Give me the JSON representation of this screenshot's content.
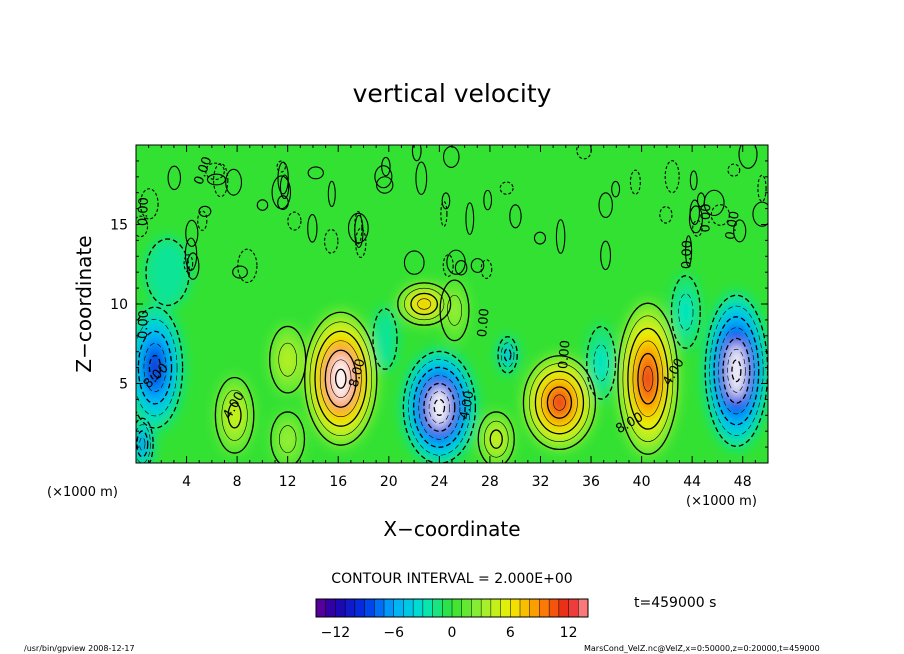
{
  "chart_data": {
    "type": "heatmap",
    "title": "vertical velocity",
    "xlabel": "X−coordinate",
    "ylabel": "Z−coordinate",
    "x_unit_left": "(×1000 m)",
    "x_unit_right": "(×1000 m)",
    "xlim": [
      0,
      50
    ],
    "ylim": [
      0,
      20
    ],
    "xticks": [
      4,
      8,
      12,
      16,
      20,
      24,
      28,
      32,
      36,
      40,
      44,
      48
    ],
    "yticks": [
      5,
      10,
      15
    ],
    "contour_interval_text": "CONTOUR INTERVAL = 2.000E+00",
    "time_text": "t=459000 s",
    "colorbar": {
      "min": -14,
      "max": 14,
      "step": 1,
      "ticks": [
        -12,
        -6,
        0,
        6,
        12
      ]
    },
    "contour_labels": [
      {
        "text": "4.00",
        "x": 8,
        "y": 3.5,
        "angle": -60
      },
      {
        "text": "8.00",
        "x": 17.8,
        "y": 5.6,
        "angle": -75
      },
      {
        "text": "4.00",
        "x": 26.5,
        "y": 3.6,
        "angle": -80
      },
      {
        "text": "0.00",
        "x": 27.8,
        "y": 8.8,
        "angle": -85
      },
      {
        "text": "0.00",
        "x": 34.2,
        "y": 6.8,
        "angle": -85
      },
      {
        "text": "8.00",
        "x": 39.2,
        "y": 2.3,
        "angle": -30
      },
      {
        "text": "4.00",
        "x": 42.8,
        "y": 5.6,
        "angle": -60
      },
      {
        "text": "8.00",
        "x": 1.8,
        "y": 5.3,
        "angle": -45
      },
      {
        "text": "0.00",
        "x": 0.9,
        "y": 8.7,
        "angle": -88
      },
      {
        "text": "0.00",
        "x": 0.9,
        "y": 15.8,
        "angle": -88
      },
      {
        "text": "0.00",
        "x": 5.6,
        "y": 18.3,
        "angle": -70
      },
      {
        "text": "0.00",
        "x": 43.9,
        "y": 13.1,
        "angle": -88
      },
      {
        "text": "0.00",
        "x": 45.4,
        "y": 15.4,
        "angle": -88
      },
      {
        "text": "0.00",
        "x": 47.5,
        "y": 14.9,
        "angle": -80
      }
    ],
    "cells": [
      {
        "x": 16.2,
        "y": 5.3,
        "rx": 3.0,
        "ry": 4.4,
        "value": 14
      },
      {
        "x": 24.0,
        "y": 3.5,
        "rx": 3.0,
        "ry": 3.7,
        "value": -14
      },
      {
        "x": 33.5,
        "y": 3.8,
        "rx": 3.0,
        "ry": 3.1,
        "value": 12
      },
      {
        "x": 40.5,
        "y": 5.3,
        "rx": 2.5,
        "ry": 5.0,
        "value": 12
      },
      {
        "x": 47.5,
        "y": 5.8,
        "rx": 2.6,
        "ry": 5.0,
        "value": -14
      },
      {
        "x": 1.5,
        "y": 6.0,
        "rx": 2.3,
        "ry": 4.0,
        "value": -10
      },
      {
        "x": 0.5,
        "y": 1.2,
        "rx": 0.9,
        "ry": 1.7,
        "value": -8
      },
      {
        "x": 7.8,
        "y": 3.0,
        "rx": 1.6,
        "ry": 2.5,
        "value": 5
      },
      {
        "x": 12.0,
        "y": 1.5,
        "rx": 1.4,
        "ry": 1.8,
        "value": 3
      },
      {
        "x": 28.5,
        "y": 1.5,
        "rx": 1.5,
        "ry": 1.8,
        "value": 5
      },
      {
        "x": 22.8,
        "y": 10.0,
        "rx": 2.2,
        "ry": 1.4,
        "value": 8
      },
      {
        "x": 29.4,
        "y": 6.8,
        "rx": 0.8,
        "ry": 1.2,
        "value": -6
      },
      {
        "x": 36.8,
        "y": 6.3,
        "rx": 1.2,
        "ry": 2.4,
        "value": -3
      },
      {
        "x": 25.2,
        "y": 9.6,
        "rx": 1.2,
        "ry": 2.0,
        "value": 3
      },
      {
        "x": 19.7,
        "y": 7.8,
        "rx": 1.0,
        "ry": 2.0,
        "value": -2
      },
      {
        "x": 43.5,
        "y": 9.5,
        "rx": 1.2,
        "ry": 2.4,
        "value": -3
      },
      {
        "x": 2.5,
        "y": 12.0,
        "rx": 1.8,
        "ry": 2.2,
        "value": -2
      },
      {
        "x": 12.0,
        "y": 6.5,
        "rx": 1.5,
        "ry": 2.2,
        "value": 4
      }
    ]
  },
  "footer": {
    "left": "/usr/bin/gpview  2008-12-17",
    "right": "MarsCond_VelZ.nc@VelZ,x=0:50000,z=0:20000,t=459000"
  }
}
